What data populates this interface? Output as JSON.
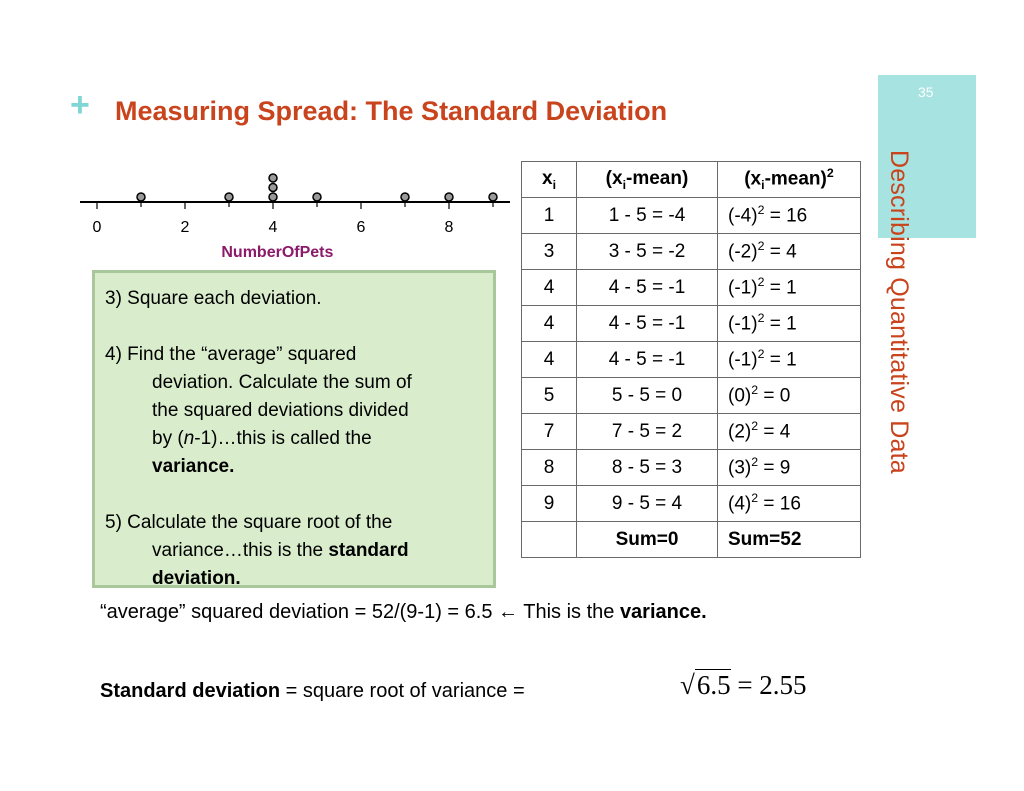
{
  "slide": {
    "plus": "+",
    "title": "Measuring Spread: The Standard Deviation",
    "page_number": "35",
    "side_title": "Describing Quantitative Data",
    "accent_color": "#c9431c",
    "side_block_color": "#a6e3e1"
  },
  "dotplot": {
    "axis_label": "NumberOfPets",
    "tick_labels": [
      "0",
      "2",
      "4",
      "6",
      "8"
    ],
    "tick_values": [
      0,
      1,
      2,
      3,
      4,
      5,
      6,
      7,
      8,
      9
    ],
    "values": [
      1,
      3,
      4,
      4,
      4,
      5,
      7,
      8,
      9
    ]
  },
  "steps": {
    "s3": "3) Square each deviation.",
    "s4_a": "4) Find the “average” squared",
    "s4_b": "deviation. Calculate the sum of",
    "s4_c": "the squared deviations divided",
    "s4_d1": "by (",
    "s4_d2": "n",
    "s4_d3": "-1)…this is called the",
    "s4_e": "variance.",
    "s5_a": "5) Calculate the square root of the",
    "s5_b1": "variance…this is the ",
    "s5_b2": "standard",
    "s5_c": "deviation."
  },
  "table": {
    "header": {
      "x_base": "x",
      "x_sub": "i",
      "dev_pre": "(x",
      "dev_sub": "i",
      "dev_post": "-mean)",
      "sq_pre": "(x",
      "sq_sub": "i",
      "sq_post": "-mean)",
      "sq_sup": "2"
    },
    "rows": [
      {
        "x": "1",
        "dev": "1 - 5 = -4",
        "sq_base": "(-4)",
        "sq_exp": "2",
        "sq_rest": " = 16"
      },
      {
        "x": "3",
        "dev": "3 - 5 = -2",
        "sq_base": "(-2)",
        "sq_exp": "2",
        "sq_rest": " = 4"
      },
      {
        "x": "4",
        "dev": "4 - 5 = -1",
        "sq_base": "(-1)",
        "sq_exp": "2",
        "sq_rest": " = 1"
      },
      {
        "x": "4",
        "dev": "4 - 5 = -1",
        "sq_base": "(-1)",
        "sq_exp": "2",
        "sq_rest": " = 1"
      },
      {
        "x": "4",
        "dev": "4 - 5 = -1",
        "sq_base": "(-1)",
        "sq_exp": "2",
        "sq_rest": " = 1"
      },
      {
        "x": "5",
        "dev": "5 - 5 = 0",
        "sq_base": "(0)",
        "sq_exp": "2",
        "sq_rest": " = 0"
      },
      {
        "x": "7",
        "dev": "7 - 5 = 2",
        "sq_base": "(2)",
        "sq_exp": "2",
        "sq_rest": " = 4"
      },
      {
        "x": "8",
        "dev": "8 - 5 = 3",
        "sq_base": "(3)",
        "sq_exp": "2",
        "sq_rest": " = 9"
      },
      {
        "x": "9",
        "dev": "9 - 5 = 4",
        "sq_base": "(4)",
        "sq_exp": "2",
        "sq_rest": " = 16"
      }
    ],
    "sum_dev": "Sum=0",
    "sum_sq": "Sum=52"
  },
  "variance_line": {
    "text": "“average” squared deviation = 52/(9-1) = 6.5 ",
    "arrow": "←",
    "tail": " This is the ",
    "bold": "variance."
  },
  "sd_line": {
    "bold": "Standard deviation",
    "rest": " = square root of variance =",
    "radical": "√",
    "radicand": "6.5",
    "equals": " = 2.55"
  }
}
